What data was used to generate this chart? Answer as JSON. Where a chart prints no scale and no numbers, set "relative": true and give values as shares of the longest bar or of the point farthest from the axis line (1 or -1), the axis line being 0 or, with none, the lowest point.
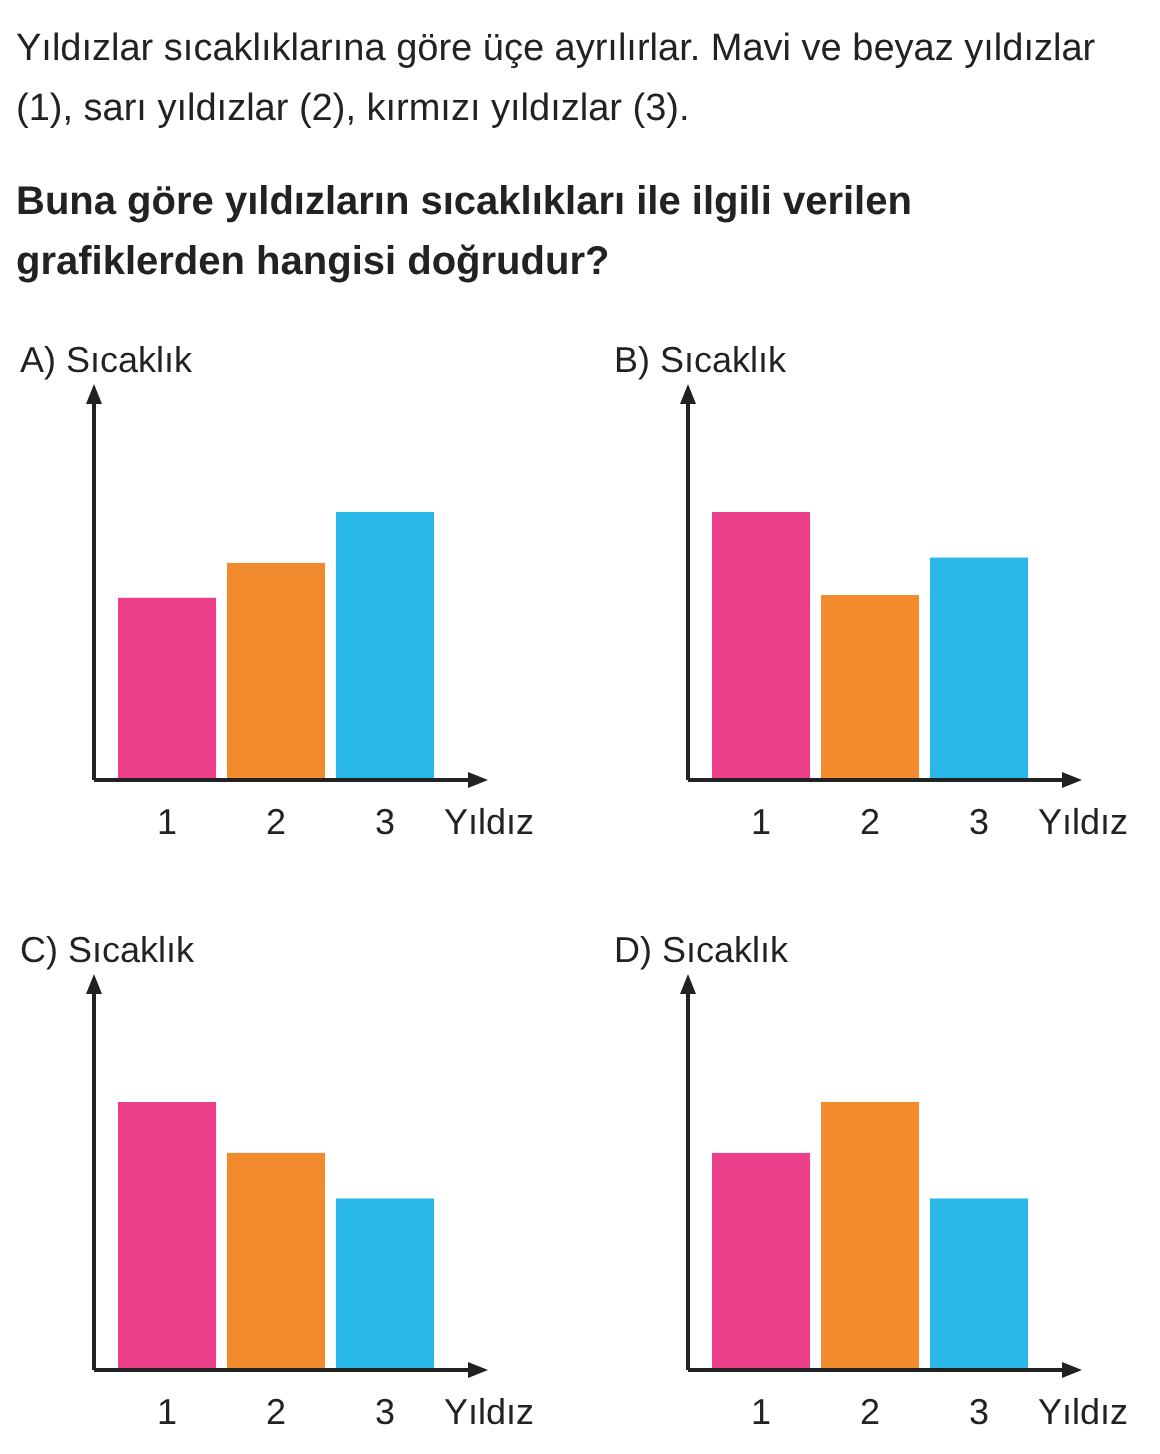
{
  "chart_data": [
    {
      "type": "other",
      "annotations": [
        "Yıldızlar sıcaklıklarına göre üçe ayrılırlar. Mavi ve beyaz yıldızlar (1), sarı yıldızlar (2), kırmızı yıldızlar (3)."
      ],
      "title": "Buna göre yıldızların sıcaklıkları ile ilgili verilen grafiklerden hangisi doğrudur?"
    },
    {
      "type": "bar",
      "title": "A)",
      "ylabel": "Sıcaklık",
      "xlabel": "Yıldız",
      "categories": [
        "1",
        "2",
        "3"
      ],
      "values": [
        0.68,
        0.81,
        1
      ],
      "colors": [
        "#ec3f8a",
        "#f28a2e",
        "#29b8e8"
      ],
      "relative": true
    },
    {
      "type": "bar",
      "title": "B)",
      "ylabel": "Sıcaklık",
      "xlabel": "Yıldız",
      "categories": [
        "1",
        "2",
        "3"
      ],
      "values": [
        1,
        0.69,
        0.83
      ],
      "colors": [
        "#ec3f8a",
        "#f28a2e",
        "#29b8e8"
      ],
      "relative": true
    },
    {
      "type": "bar",
      "title": "C)",
      "ylabel": "Sıcaklık",
      "xlabel": "Yıldız",
      "categories": [
        "1",
        "2",
        "3"
      ],
      "values": [
        1,
        0.81,
        0.64
      ],
      "colors": [
        "#ec3f8a",
        "#f28a2e",
        "#29b8e8"
      ],
      "relative": true
    },
    {
      "type": "bar",
      "title": "D)",
      "ylabel": "Sıcaklık",
      "xlabel": "Yıldız",
      "categories": [
        "1",
        "2",
        "3"
      ],
      "values": [
        0.81,
        1,
        0.64
      ],
      "colors": [
        "#ec3f8a",
        "#f28a2e",
        "#29b8e8"
      ],
      "relative": true
    }
  ]
}
